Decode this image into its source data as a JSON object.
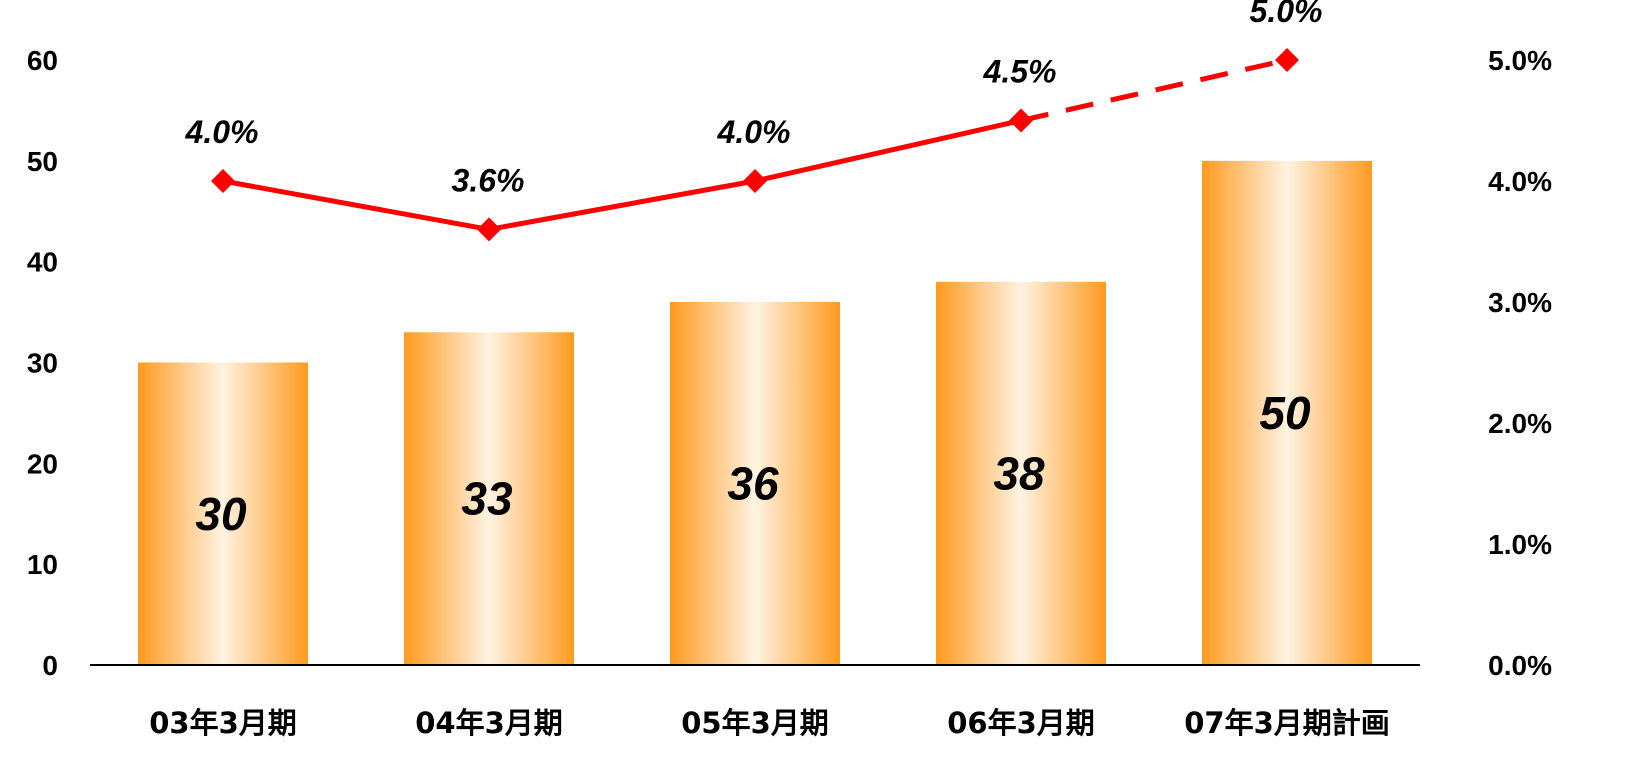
{
  "chart_data": {
    "type": "bar",
    "categories": [
      "03年3月期",
      "04年3月期",
      "05年3月期",
      "06年3月期",
      "07年3月期計画"
    ],
    "series": [
      {
        "values": [
          30,
          33,
          36,
          38,
          50
        ],
        "data_labels": [
          "30",
          "33",
          "36",
          "38",
          "50"
        ]
      },
      {
        "type": "line",
        "axis": "secondary",
        "values": [
          4.0,
          3.6,
          4.0,
          4.5,
          5.0
        ],
        "data_labels": [
          "4.0%",
          "3.6%",
          "4.0%",
          "4.5%",
          "5.0%"
        ],
        "dashed_last_segment": true
      }
    ],
    "ylim": [
      0,
      60
    ],
    "y_ticks": [
      "0",
      "10",
      "20",
      "30",
      "40",
      "50",
      "60"
    ],
    "y2lim": [
      0,
      5
    ],
    "y2_ticks": [
      "0.0%",
      "1.0%",
      "2.0%",
      "3.0%",
      "4.0%",
      "5.0%"
    ],
    "grid": false,
    "colors": {
      "bar_edge": "#ff9a1f",
      "bar_center": "#fff3e2",
      "line": "#ff0000"
    }
  }
}
